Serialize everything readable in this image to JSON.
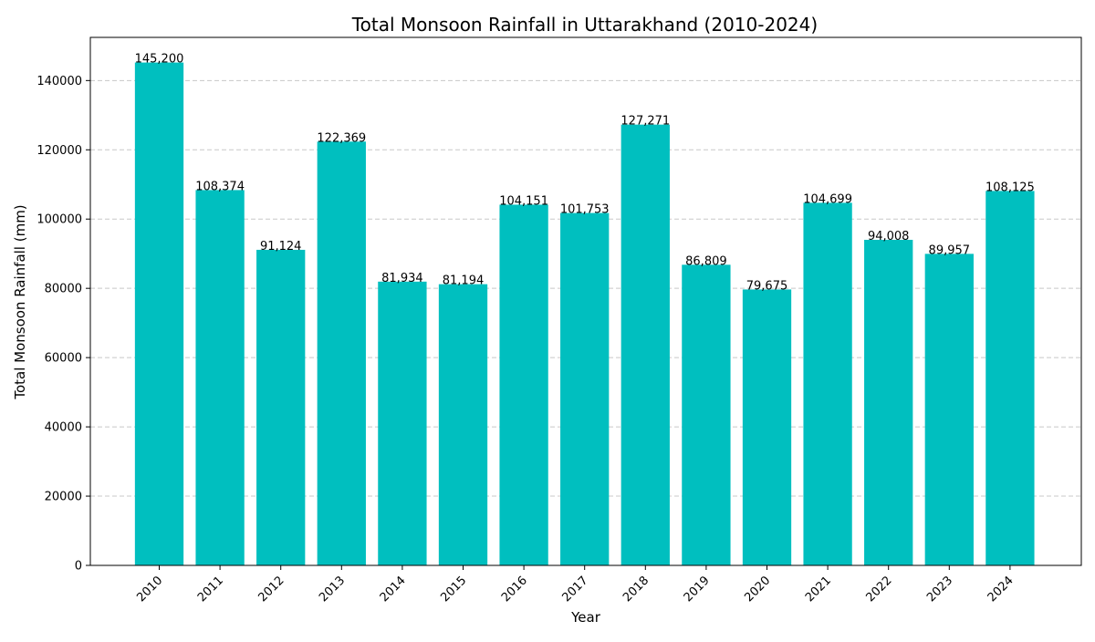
{
  "chart_data": {
    "type": "bar",
    "title": "Total Monsoon Rainfall in Uttarakhand (2010-2024)",
    "xlabel": "Year",
    "ylabel": "Total Monsoon Rainfall (mm)",
    "categories": [
      "2010",
      "2011",
      "2012",
      "2013",
      "2014",
      "2015",
      "2016",
      "2017",
      "2018",
      "2019",
      "2020",
      "2021",
      "2022",
      "2023",
      "2024"
    ],
    "values": [
      145200,
      108374,
      91124,
      122369,
      81934,
      81194,
      104151,
      101753,
      127271,
      86809,
      79675,
      104699,
      94008,
      89957,
      108125
    ],
    "value_labels": [
      "145,200",
      "108,374",
      "91,124",
      "122,369",
      "81,934",
      "81,194",
      "104,151",
      "101,753",
      "127,271",
      "86,809",
      "79,675",
      "104,699",
      "94,008",
      "89,957",
      "108,125"
    ],
    "ylim": [
      0,
      152460
    ],
    "yticks": [
      0,
      20000,
      40000,
      60000,
      80000,
      100000,
      120000,
      140000
    ],
    "ytick_labels": [
      "0",
      "20000",
      "40000",
      "60000",
      "80000",
      "100000",
      "120000",
      "140000"
    ],
    "grid": "y-dashed",
    "x_tick_rotation": 45,
    "colors": {
      "bar": "#00bfbf",
      "grid": "#c8c8c8",
      "text": "#000000"
    }
  }
}
